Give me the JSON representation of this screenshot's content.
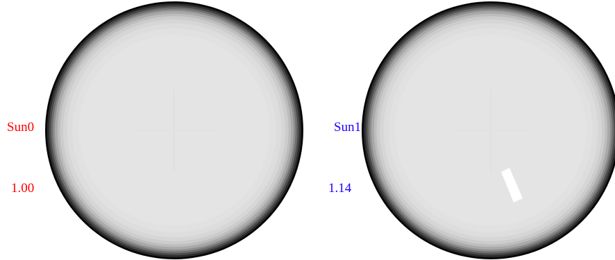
{
  "panels": [
    {
      "name": "Sun0",
      "value": "1.00",
      "color": "#ff0000",
      "has_spot": false
    },
    {
      "name": "Sun1",
      "value": "1.14",
      "color": "#2000ff",
      "has_spot": true
    }
  ],
  "disc_shading": [
    "#050505",
    "#2a2a2a",
    "#4a4a4a",
    "#6e6e6e",
    "#8d8d8d",
    "#a8a8a8",
    "#bdbdbd",
    "#cccccc",
    "#d6d6d6",
    "#dddddd",
    "#e1e1e1",
    "#e4e4e4"
  ],
  "spot_color": "#ffffff"
}
